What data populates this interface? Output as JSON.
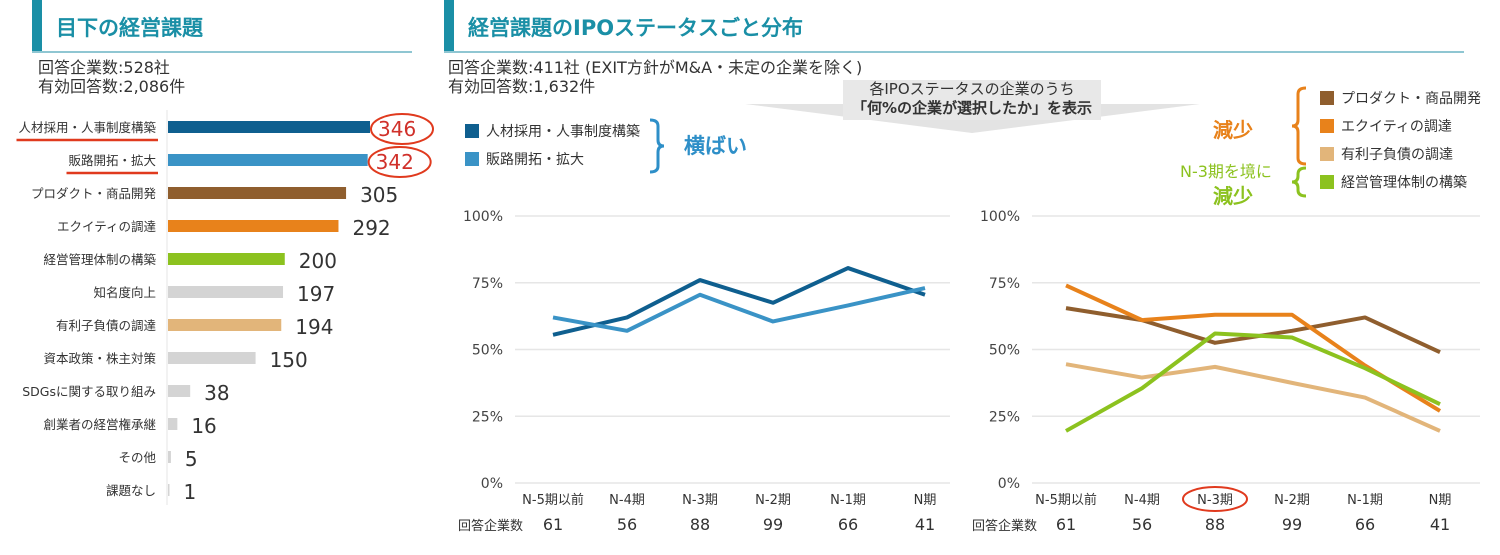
{
  "left": {
    "title": "目下の経営課題",
    "respondents": "回答企業数:528社",
    "valid_answers": "有効回答数:2,086件"
  },
  "right": {
    "title": "経営課題のIPOステータスごと分布",
    "respondents": "回答企業数:411社 (EXIT方針がM&A・未定の企業を除く)",
    "valid_answers": "有効回答数:1,632件",
    "callout_line1": "各IPOステータスの企業のうち",
    "callout_line2": "「何%の企業が選択したか」を表示",
    "flat_label": "横ばい",
    "decrease_label": "減少",
    "n3_label_line1": "N-3期を境に",
    "n3_label_line2": "減少",
    "count_row_label": "回答企業数"
  },
  "colors": {
    "title": "#1a8fa6",
    "annotation_red": "#e03a1e",
    "flat": "#2e8fc8",
    "decrease": "#e8821b",
    "n3_decrease": "#8cc21f"
  },
  "chart_data": [
    {
      "type": "bar",
      "orientation": "horizontal",
      "categories": [
        "人材採用・人事制度構築",
        "販路開拓・拡大",
        "プロダクト・商品開発",
        "エクイティの調達",
        "経営管理体制の構築",
        "知名度向上",
        "有利子負債の調達",
        "資本政策・株主対策",
        "SDGsに関する取り組み",
        "創業者の経営権承継",
        "その他",
        "課題なし"
      ],
      "values": [
        346,
        342,
        305,
        292,
        200,
        197,
        194,
        150,
        38,
        16,
        5,
        1
      ],
      "colors": [
        "#0f5f8f",
        "#3a93c6",
        "#8f5e2e",
        "#e8821b",
        "#8cc21f",
        "#d4d4d4",
        "#e2b57a",
        "#d4d4d4",
        "#d4d4d4",
        "#d4d4d4",
        "#d4d4d4",
        "#d4d4d4"
      ],
      "highlighted": [
        "人材採用・人事制度構築",
        "販路開拓・拡大"
      ]
    },
    {
      "type": "line",
      "categories": [
        "N-5期以前",
        "N-4期",
        "N-3期",
        "N-2期",
        "N-1期",
        "N期"
      ],
      "respondent_counts": [
        61,
        56,
        88,
        99,
        66,
        41
      ],
      "ylim": [
        0,
        100
      ],
      "yticks": [
        "0%",
        "25%",
        "50%",
        "75%",
        "100%"
      ],
      "grid": true,
      "series": [
        {
          "name": "人材採用・人事制度構築",
          "color": "#0f5f8f",
          "values": [
            55.5,
            62,
            76,
            67.5,
            80.5,
            70.5
          ]
        },
        {
          "name": "販路開拓・拡大",
          "color": "#3a93c6",
          "values": [
            62,
            57,
            70.5,
            60.5,
            66.5,
            73
          ]
        }
      ]
    },
    {
      "type": "line",
      "categories": [
        "N-5期以前",
        "N-4期",
        "N-3期",
        "N-2期",
        "N-1期",
        "N期"
      ],
      "respondent_counts": [
        61,
        56,
        88,
        99,
        66,
        41
      ],
      "ylim": [
        0,
        100
      ],
      "yticks": [
        "0%",
        "25%",
        "50%",
        "75%",
        "100%"
      ],
      "grid": true,
      "highlighted_category": "N-3期",
      "series": [
        {
          "name": "プロダクト・商品開発",
          "color": "#8f5e2e",
          "values": [
            65.5,
            61,
            52.5,
            57,
            62,
            49
          ]
        },
        {
          "name": "エクイティの調達",
          "color": "#e8821b",
          "values": [
            74,
            61,
            63,
            63,
            44,
            27
          ]
        },
        {
          "name": "有利子負債の調達",
          "color": "#e2b57a",
          "values": [
            44.5,
            39.5,
            43.5,
            37.5,
            32,
            19.5
          ]
        },
        {
          "name": "経営管理体制の構築",
          "color": "#8cc21f",
          "values": [
            19.5,
            35.5,
            56,
            54.5,
            43,
            29.5
          ]
        }
      ]
    }
  ]
}
